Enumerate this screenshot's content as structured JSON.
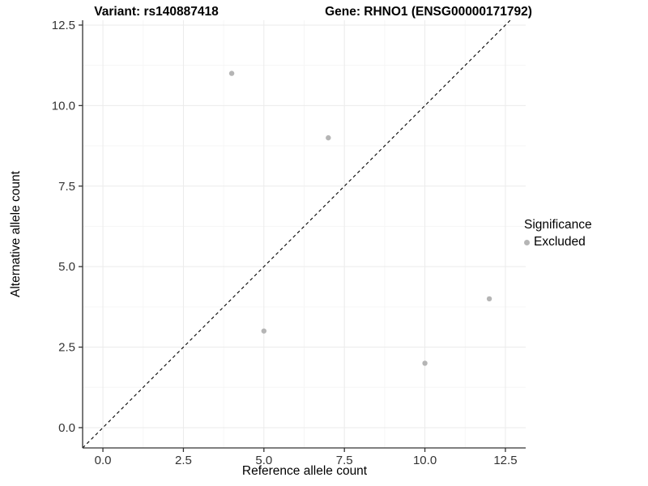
{
  "figure": {
    "titles": {
      "left": "Variant: rs140887418",
      "right": "Gene: RHNO1 (ENSG00000171792)"
    },
    "axes": {
      "x_label": "Reference allele count",
      "y_label": "Alternative allele count"
    },
    "legend": {
      "title": "Significance",
      "items": [
        {
          "label": "Excluded",
          "color": "#b5b5b5"
        }
      ]
    }
  },
  "chart_data": {
    "type": "scatter",
    "title_left": "Variant: rs140887418",
    "title_right": "Gene: RHNO1 (ENSG00000171792)",
    "xlabel": "Reference allele count",
    "ylabel": "Alternative allele count",
    "xlim": [
      -0.63,
      13.13
    ],
    "ylim": [
      -0.63,
      12.65
    ],
    "x_ticks": [
      0.0,
      2.5,
      5.0,
      7.5,
      10.0,
      12.5
    ],
    "y_ticks": [
      0.0,
      2.5,
      5.0,
      7.5,
      10.0,
      12.5
    ],
    "x_minor": [
      1.25,
      3.75,
      6.25,
      8.75,
      11.25
    ],
    "y_minor": [
      1.25,
      3.75,
      6.25,
      8.75,
      11.25
    ],
    "tick_label_decimals": 1,
    "grid": true,
    "legend_position": "right",
    "series": [
      {
        "name": "Excluded",
        "color": "#b5b5b5",
        "points": [
          {
            "x": 4,
            "y": 11
          },
          {
            "x": 7,
            "y": 9
          },
          {
            "x": 5,
            "y": 3
          },
          {
            "x": 10,
            "y": 2
          },
          {
            "x": 12,
            "y": 4
          }
        ]
      }
    ],
    "reference_line": {
      "type": "identity",
      "slope": 1,
      "intercept": 0,
      "style": "dashed",
      "color": "#000000"
    },
    "colors": {
      "background": "#ffffff",
      "grid_major": "#ebebeb",
      "grid_minor": "#f6f6f6",
      "axis_line": "#333333",
      "tick_mark": "#333333",
      "tick_label": "#333333",
      "point": "#b5b5b5"
    },
    "point_radius": 3.2
  }
}
